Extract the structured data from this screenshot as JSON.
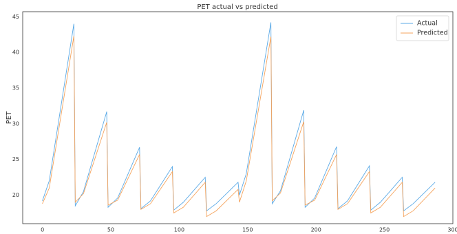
{
  "chart_data": {
    "type": "line",
    "title": "PET actual vs predicted",
    "ylabel": "PET",
    "x": [
      0,
      5,
      23,
      24,
      30,
      47,
      48,
      55,
      71,
      72,
      79,
      95,
      96,
      103,
      119,
      120,
      127,
      143,
      144,
      149,
      167,
      168,
      174,
      191,
      192,
      199,
      215,
      216,
      223,
      239,
      240,
      247,
      263,
      264,
      271,
      287
    ],
    "series": [
      {
        "name": "Actual",
        "color": "#5aa9e6",
        "values": [
          19.2,
          22,
          44,
          18.5,
          20.5,
          31.7,
          18.3,
          19.6,
          26.7,
          18.1,
          19.2,
          24.0,
          17.9,
          19.0,
          22.5,
          17.8,
          18.8,
          21.8,
          20.0,
          23,
          44.2,
          18.8,
          20.6,
          31.9,
          18.3,
          19.6,
          26.8,
          18.1,
          19.2,
          24.1,
          17.9,
          19.0,
          22.5,
          17.8,
          18.8,
          21.8
        ]
      },
      {
        "name": "Predicted",
        "color": "#f5a35c",
        "values": [
          18.8,
          21,
          42.3,
          19.0,
          20.2,
          30.2,
          18.6,
          19.3,
          25.7,
          18.0,
          18.8,
          23.3,
          17.5,
          18.3,
          21.8,
          17.0,
          17.8,
          20.8,
          19.0,
          22,
          42.2,
          19.2,
          20.3,
          30.3,
          18.6,
          19.3,
          25.7,
          18.0,
          18.8,
          23.3,
          17.5,
          18.3,
          21.8,
          17.0,
          17.8,
          21.0
        ]
      }
    ],
    "xlim": [
      -14.4,
      300
    ],
    "xticks": [
      0,
      50,
      100,
      150,
      200,
      250,
      300
    ],
    "ylim": [
      16,
      45.7
    ],
    "yticks": [
      20,
      25,
      30,
      35,
      40,
      45
    ],
    "grid": false,
    "legend": "upper right"
  }
}
